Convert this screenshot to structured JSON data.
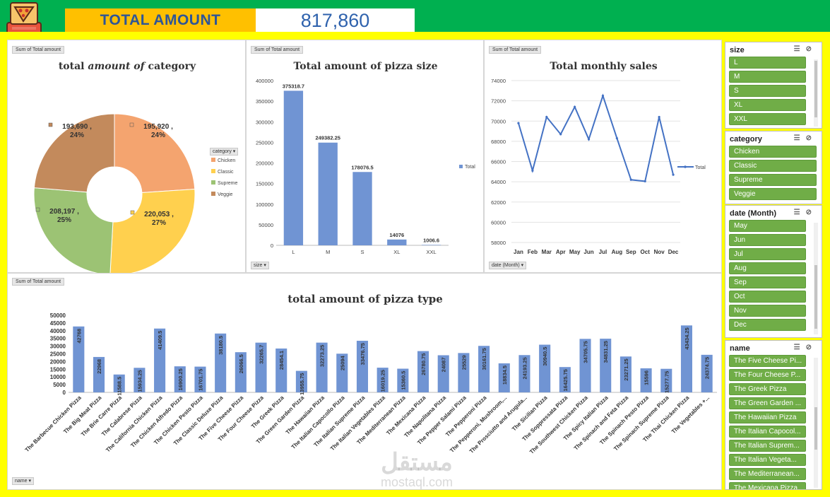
{
  "header": {
    "total_label": "TOTAL AMOUNT",
    "total_value": "817,860",
    "logo_icon": "pizza-logo-icon"
  },
  "field_buttons": {
    "sum_label": "Sum of Total amount",
    "category_filter": "category",
    "size_filter": "size",
    "date_filter": "date (Month)",
    "name_filter": "name"
  },
  "chart_data": [
    {
      "type": "pie",
      "title_parts": [
        "total ",
        "amount of",
        " category"
      ],
      "categories": [
        "Chicken",
        "Classic",
        "Supreme",
        "Veggie"
      ],
      "values": [
        195920,
        220053,
        208197,
        193690
      ],
      "value_labels": [
        "195,920",
        "220,053",
        "208,197",
        "193,690"
      ],
      "percent_labels": [
        "24%",
        "27%",
        "25%",
        "24%"
      ],
      "colors": [
        "#f4a46f",
        "#ffd04e",
        "#9cc374",
        "#c38a5c"
      ],
      "legend": "right"
    },
    {
      "type": "bar",
      "title": "Total amount of pizza size",
      "categories": [
        "L",
        "M",
        "S",
        "XL",
        "XXL"
      ],
      "values": [
        375318.7,
        249382.25,
        178076.5,
        14076,
        1006.6
      ],
      "value_labels": [
        "375318.7",
        "249382.25",
        "178076.5",
        "14076",
        "1006.6"
      ],
      "yticks": [
        "0",
        "50000",
        "100000",
        "150000",
        "200000",
        "250000",
        "300000",
        "350000",
        "400000"
      ],
      "ylim": [
        0,
        400000
      ],
      "legend_label": "Total",
      "color": "#7094d3"
    },
    {
      "type": "line",
      "title": "Total monthly sales",
      "categories": [
        "Jan",
        "Feb",
        "Mar",
        "Apr",
        "May",
        "Jun",
        "Jul",
        "Aug",
        "Sep",
        "Oct",
        "Nov",
        "Dec"
      ],
      "values": [
        69800,
        65100,
        70400,
        68700,
        71400,
        68200,
        72500,
        68300,
        64200,
        64050,
        70400,
        64700
      ],
      "yticks": [
        "58000",
        "60000",
        "62000",
        "64000",
        "66000",
        "68000",
        "70000",
        "72000",
        "74000"
      ],
      "ylim": [
        58000,
        74000
      ],
      "legend_label": "Total",
      "color": "#4472c4"
    },
    {
      "type": "bar",
      "title": "total amount of pizza type",
      "categories": [
        "The Barbecue Chicken Pizza",
        "The Big Meat Pizza",
        "The Brie Carre Pizza",
        "The Calabrese Pizza",
        "The California Chicken Pizza",
        "The Chicken Alfredo Pizza",
        "The Chicken Pesto Pizza",
        "The Classic Deluxe Pizza",
        "The Five Cheese Pizza",
        "The Four Cheese Pizza",
        "The Greek Pizza",
        "The Green Garden Pizza",
        "The Hawaiian Pizza",
        "The Italian Capocollo Pizza",
        "The Italian Supreme Pizza",
        "The Italian Vegetables Pizza",
        "The Mediterranean Pizza",
        "The Mexicana Pizza",
        "The Napolitana Pizza",
        "The Pepper Salami Pizza",
        "The Pepperoni Pizza",
        "The Pepperoni, Mushroom,...",
        "The Prosciutto and Arugula...",
        "The Sicilian Pizza",
        "The Soppressata Pizza",
        "The Southwest Chicken Pizza",
        "The Spicy Italian Pizza",
        "The Spinach and Feta Pizza",
        "The Spinach Pesto Pizza",
        "The Spinach Supreme Pizza",
        "The Thai Chicken Pizza",
        "The Vegetables +..."
      ],
      "values": [
        42768,
        22968,
        11588.5,
        15934.25,
        41409.5,
        16900.25,
        16701.75,
        38180.5,
        26066.5,
        32265.7,
        28454.1,
        13955.75,
        32273.25,
        25094,
        33476.75,
        16019.25,
        15360.5,
        26780.75,
        24087,
        25529,
        30161.75,
        18834.5,
        24193.25,
        30940.5,
        16425.75,
        34705.75,
        34831.25,
        23271.25,
        15596,
        15277.75,
        43434.25,
        24374.75
      ],
      "value_labels": [
        "42768",
        "22968",
        "11588.5",
        "15934.25",
        "41409.5",
        "16900.25",
        "16701.75",
        "38180.5",
        "26066.5",
        "32265.7",
        "28454.1",
        "13955.75",
        "32273.25",
        "25094",
        "33476.75",
        "16019.25",
        "15360.5",
        "26780.75",
        "24087",
        "25529",
        "30161.75",
        "18834.5",
        "24193.25",
        "30940.5",
        "16425.75",
        "34705.75",
        "34831.25",
        "23271.25",
        "15596",
        "15277.75",
        "43434.25",
        "24374.75"
      ],
      "yticks": [
        "0",
        "5000",
        "10000",
        "15000",
        "20000",
        "25000",
        "30000",
        "35000",
        "40000",
        "45000",
        "50000"
      ],
      "ylim": [
        0,
        50000
      ],
      "color": "#7094d3"
    }
  ],
  "slicers": {
    "size": {
      "title": "size",
      "items": [
        "L",
        "M",
        "S",
        "XL",
        "XXL"
      ]
    },
    "category": {
      "title": "category",
      "items": [
        "Chicken",
        "Classic",
        "Supreme",
        "Veggie"
      ]
    },
    "date": {
      "title": "date (Month)",
      "items": [
        "May",
        "Jun",
        "Jul",
        "Aug",
        "Sep",
        "Oct",
        "Nov",
        "Dec"
      ]
    },
    "name": {
      "title": "name",
      "items": [
        "The Five Cheese Pi...",
        "The Four Cheese P...",
        "The Greek Pizza",
        "The Green Garden ...",
        "The Hawaiian Pizza",
        "The Italian Capocol...",
        "The Italian Suprem...",
        "The Italian Vegeta...",
        "The Mediterranean...",
        "The Mexicana Pizza"
      ]
    }
  },
  "watermark": {
    "logo_text": "مستقل",
    "url": "mostaql.com"
  }
}
